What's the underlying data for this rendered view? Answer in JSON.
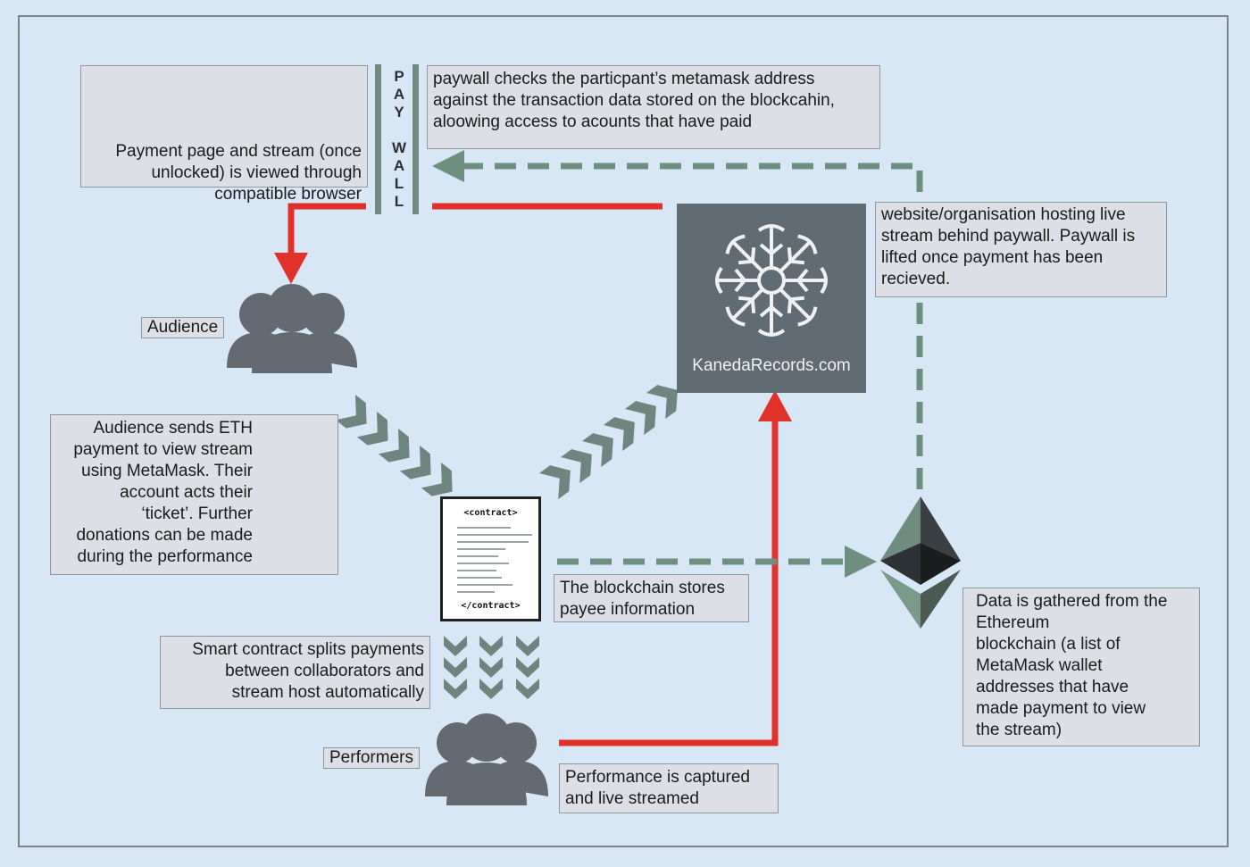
{
  "paywall": {
    "letters": [
      "P",
      "A",
      "Y",
      "",
      "W",
      "A",
      "L",
      "L"
    ]
  },
  "browsers": {
    "caption": "Payment page and stream (once\nunlocked) is viewed through\ncompatible browser",
    "icons": [
      "chrome-icon",
      "firefox-icon",
      "opera-icon",
      "brave-icon"
    ]
  },
  "paywall_note": "paywall checks the particpant’s metamask address\nagainst the transaction data stored on the blockcahin,\naloowing access to acounts that have paid",
  "site": {
    "name": "KanedaRecords.com",
    "note": "website/organisation hosting live\nstream behind paywall. Paywall is\nlifted once payment has been\nrecieved."
  },
  "audience": {
    "label": "Audience",
    "note": "Audience sends ETH\npayment to view stream\nusing MetaMask. Their\naccount acts their\n‘ticket’. Further\ndonations can be made\nduring the performance"
  },
  "contract": {
    "open_tag": "<contract>",
    "close_tag": "</contract>",
    "blockchain_note": "The blockchain stores\npayee information",
    "split_note": "Smart contract splits payments\nbetween collaborators and\nstream host automatically"
  },
  "performers": {
    "label": "Performers",
    "note": "Performance is captured\nand live streamed"
  },
  "ethereum": {
    "note": "Data is gathered from the\nEthereum\nblockchain (a list of\nMetaMask wallet\naddresses that have\nmade payment to view\nthe stream)"
  },
  "colors": {
    "background": "#d8e7f6",
    "red_flow": "#e0312a",
    "chevron": "#6f857f",
    "dashed_flow": "#6e9080",
    "tile": "#616b73",
    "people": "#636a72"
  }
}
